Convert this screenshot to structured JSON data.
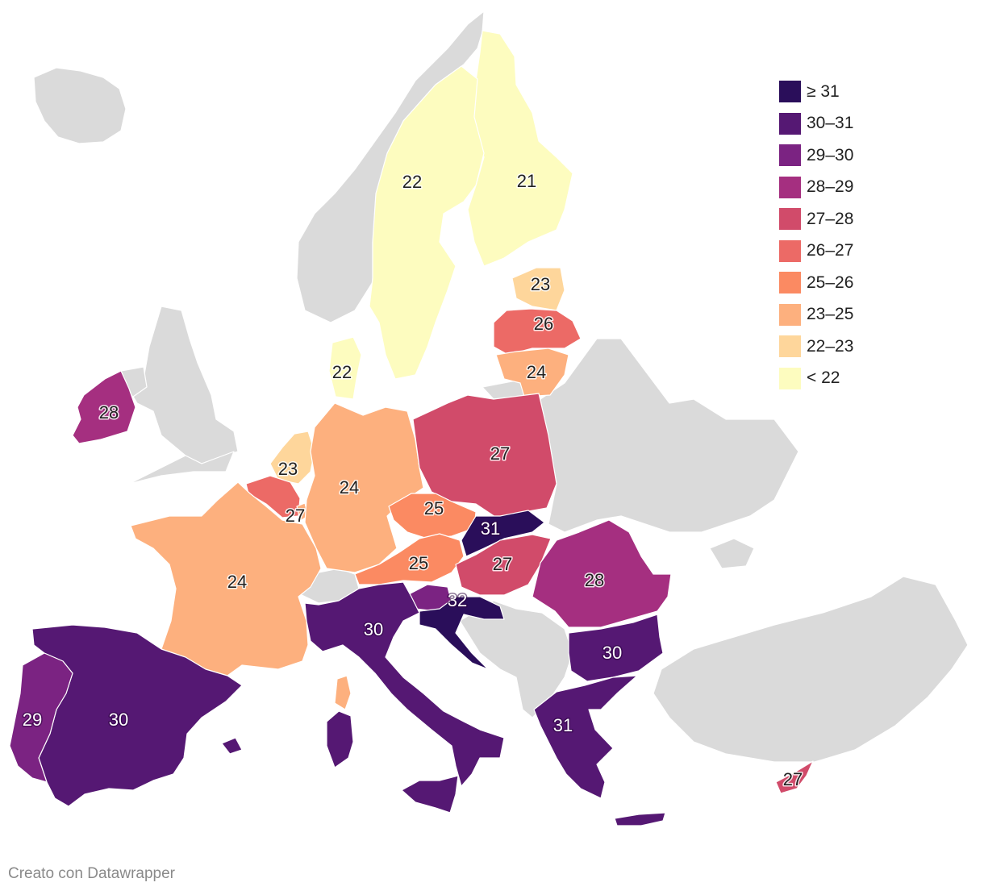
{
  "colors": {
    "no_data": "#dadada",
    "bins": {
      "ge31": "#2a0e5a",
      "30_31": "#551873",
      "29_30": "#7b2382",
      "28_29": "#a52f80",
      "27_28": "#d14b6a",
      "26_27": "#ec6a66",
      "25_26": "#fb8a62",
      "23_25": "#fdb07e",
      "22_23": "#fed69b",
      "lt22": "#fdfcbf"
    }
  },
  "legend": [
    {
      "label": "≥ 31",
      "color": "#2a0e5a"
    },
    {
      "label": "30–31",
      "color": "#551873"
    },
    {
      "label": "29–30",
      "color": "#7b2382"
    },
    {
      "label": "28–29",
      "color": "#a52f80"
    },
    {
      "label": "27–28",
      "color": "#d14b6a"
    },
    {
      "label": "26–27",
      "color": "#ec6a66"
    },
    {
      "label": "25–26",
      "color": "#fb8a62"
    },
    {
      "label": "23–25",
      "color": "#fdb07e"
    },
    {
      "label": "22–23",
      "color": "#fed69b"
    },
    {
      "label": "< 22",
      "color": "#fdfcbf"
    }
  ],
  "countries": [
    {
      "id": "finland",
      "value": "21",
      "bin": "lt22"
    },
    {
      "id": "sweden",
      "value": "22",
      "bin": "lt22"
    },
    {
      "id": "denmark",
      "value": "22",
      "bin": "lt22"
    },
    {
      "id": "estonia",
      "value": "23",
      "bin": "22_23"
    },
    {
      "id": "latvia",
      "value": "26",
      "bin": "26_27"
    },
    {
      "id": "lithuania",
      "value": "24",
      "bin": "23_25"
    },
    {
      "id": "ireland",
      "value": "28",
      "bin": "28_29"
    },
    {
      "id": "netherlands",
      "value": "23",
      "bin": "22_23"
    },
    {
      "id": "belgium",
      "value": "27",
      "bin": "26_27"
    },
    {
      "id": "luxembourg",
      "value": "",
      "bin": "23_25"
    },
    {
      "id": "germany",
      "value": "24",
      "bin": "23_25"
    },
    {
      "id": "poland",
      "value": "27",
      "bin": "27_28"
    },
    {
      "id": "czechia",
      "value": "25",
      "bin": "25_26"
    },
    {
      "id": "slovakia",
      "value": "31",
      "bin": "ge31"
    },
    {
      "id": "austria",
      "value": "25",
      "bin": "25_26"
    },
    {
      "id": "hungary",
      "value": "27",
      "bin": "27_28"
    },
    {
      "id": "slovenia",
      "value": "",
      "bin": "29_30"
    },
    {
      "id": "croatia",
      "value": "32",
      "bin": "ge31"
    },
    {
      "id": "romania",
      "value": "28",
      "bin": "28_29"
    },
    {
      "id": "bulgaria",
      "value": "30",
      "bin": "30_31"
    },
    {
      "id": "greece",
      "value": "31",
      "bin": "30_31"
    },
    {
      "id": "cyprus",
      "value": "27",
      "bin": "27_28"
    },
    {
      "id": "france",
      "value": "24",
      "bin": "23_25"
    },
    {
      "id": "italy",
      "value": "30",
      "bin": "30_31"
    },
    {
      "id": "spain",
      "value": "30",
      "bin": "30_31"
    },
    {
      "id": "portugal",
      "value": "29",
      "bin": "29_30"
    }
  ],
  "credit": "Creato con Datawrapper"
}
